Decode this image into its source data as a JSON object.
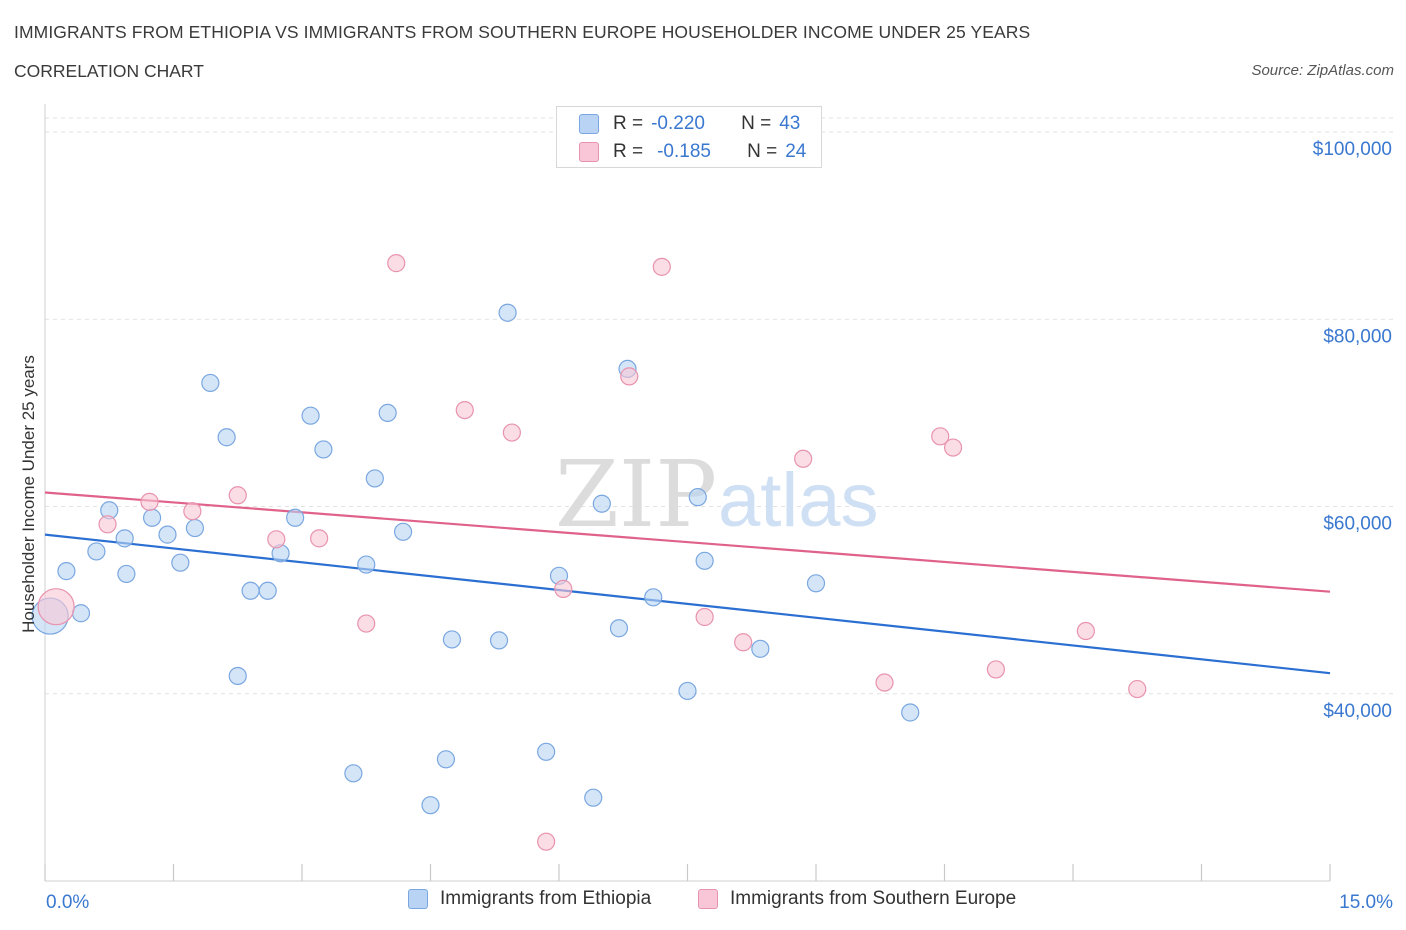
{
  "header": {
    "title": "IMMIGRANTS FROM ETHIOPIA VS IMMIGRANTS FROM SOUTHERN EUROPE HOUSEHOLDER INCOME UNDER 25 YEARS",
    "subtitle": "CORRELATION CHART",
    "source": "Source: ZipAtlas.com"
  },
  "stats": {
    "rows": [
      {
        "r_label": "R =",
        "r_value": "-0.220",
        "n_label": "N =",
        "n_value": "43"
      },
      {
        "r_label": "R =",
        "r_value": "-0.185",
        "n_label": "N =",
        "n_value": "24"
      }
    ]
  },
  "watermark": {
    "zip": "ZIP",
    "atlas": "atlas"
  },
  "legend": {
    "series1": "Immigrants from Ethiopia",
    "series2": "Immigrants from Southern Europe"
  },
  "colors": {
    "blue_fill": "#b8d3f3",
    "blue_stroke": "#7aa7e0",
    "blue_line": "#2a6fd1",
    "pink_fill": "#f8c6d6",
    "pink_stroke": "#e893ae",
    "pink_line": "#e0628a",
    "accent_text": "#3a78d0"
  },
  "chart_data": {
    "type": "scatter",
    "title": "IMMIGRANTS FROM ETHIOPIA VS IMMIGRANTS FROM SOUTHERN EUROPE HOUSEHOLDER INCOME UNDER 25 YEARS",
    "xlabel": "",
    "ylabel": "Householder Income Under 25 years",
    "xlim": [
      0,
      15
    ],
    "ylim": [
      20000,
      101500
    ],
    "x_tick_labels": [
      "0.0%",
      "15.0%"
    ],
    "y_ticks": [
      40000,
      60000,
      80000,
      100000
    ],
    "y_tick_labels": [
      "$40,000",
      "$60,000",
      "$80,000",
      "$100,000"
    ],
    "grid": true,
    "series": [
      {
        "name": "Immigrants from Ethiopia",
        "color": "#b8d3f3",
        "trend": {
          "x": [
            0,
            15
          ],
          "y": [
            57000,
            42200
          ]
        },
        "points": [
          {
            "x": 0.06,
            "y": 48300,
            "size": "large"
          },
          {
            "x": 0.25,
            "y": 53100
          },
          {
            "x": 0.42,
            "y": 48600
          },
          {
            "x": 0.6,
            "y": 55200
          },
          {
            "x": 0.75,
            "y": 59600
          },
          {
            "x": 0.93,
            "y": 56600
          },
          {
            "x": 0.95,
            "y": 52800
          },
          {
            "x": 1.25,
            "y": 58800
          },
          {
            "x": 1.43,
            "y": 57000
          },
          {
            "x": 1.58,
            "y": 54000
          },
          {
            "x": 1.75,
            "y": 57700
          },
          {
            "x": 1.93,
            "y": 73200
          },
          {
            "x": 2.12,
            "y": 67400
          },
          {
            "x": 2.25,
            "y": 41900
          },
          {
            "x": 2.4,
            "y": 51000
          },
          {
            "x": 2.6,
            "y": 51000
          },
          {
            "x": 2.75,
            "y": 55000
          },
          {
            "x": 2.92,
            "y": 58800
          },
          {
            "x": 3.1,
            "y": 69700
          },
          {
            "x": 3.25,
            "y": 66100
          },
          {
            "x": 3.6,
            "y": 31500
          },
          {
            "x": 3.75,
            "y": 53800
          },
          {
            "x": 3.85,
            "y": 63000
          },
          {
            "x": 4.0,
            "y": 70000
          },
          {
            "x": 4.18,
            "y": 57300
          },
          {
            "x": 4.5,
            "y": 28100
          },
          {
            "x": 4.68,
            "y": 33000
          },
          {
            "x": 4.75,
            "y": 45800
          },
          {
            "x": 5.3,
            "y": 45700
          },
          {
            "x": 5.4,
            "y": 80700
          },
          {
            "x": 5.85,
            "y": 33800
          },
          {
            "x": 6.0,
            "y": 52600
          },
          {
            "x": 6.4,
            "y": 28900
          },
          {
            "x": 6.5,
            "y": 60300
          },
          {
            "x": 6.7,
            "y": 47000
          },
          {
            "x": 6.8,
            "y": 74700
          },
          {
            "x": 7.1,
            "y": 50300
          },
          {
            "x": 7.5,
            "y": 40300
          },
          {
            "x": 7.62,
            "y": 61000
          },
          {
            "x": 7.7,
            "y": 54200
          },
          {
            "x": 8.35,
            "y": 44800
          },
          {
            "x": 9.0,
            "y": 51800
          },
          {
            "x": 10.1,
            "y": 38000
          }
        ]
      },
      {
        "name": "Immigrants from Southern Europe",
        "color": "#f8c6d6",
        "trend": {
          "x": [
            0,
            15
          ],
          "y": [
            61500,
            50900
          ]
        },
        "points": [
          {
            "x": 0.13,
            "y": 49300,
            "size": "large"
          },
          {
            "x": 0.73,
            "y": 58100
          },
          {
            "x": 1.22,
            "y": 60500
          },
          {
            "x": 1.72,
            "y": 59500
          },
          {
            "x": 2.25,
            "y": 61200
          },
          {
            "x": 2.7,
            "y": 56500
          },
          {
            "x": 3.2,
            "y": 56600
          },
          {
            "x": 3.75,
            "y": 47500
          },
          {
            "x": 4.1,
            "y": 86000
          },
          {
            "x": 4.9,
            "y": 70300
          },
          {
            "x": 5.45,
            "y": 67900
          },
          {
            "x": 5.85,
            "y": 24200
          },
          {
            "x": 6.05,
            "y": 51200
          },
          {
            "x": 6.82,
            "y": 73900
          },
          {
            "x": 7.2,
            "y": 85600
          },
          {
            "x": 7.7,
            "y": 48200
          },
          {
            "x": 8.15,
            "y": 45500
          },
          {
            "x": 8.85,
            "y": 65100
          },
          {
            "x": 9.8,
            "y": 41200
          },
          {
            "x": 10.45,
            "y": 67500
          },
          {
            "x": 10.6,
            "y": 66300
          },
          {
            "x": 11.1,
            "y": 42600
          },
          {
            "x": 12.15,
            "y": 46700
          },
          {
            "x": 12.75,
            "y": 40500
          }
        ]
      }
    ]
  }
}
